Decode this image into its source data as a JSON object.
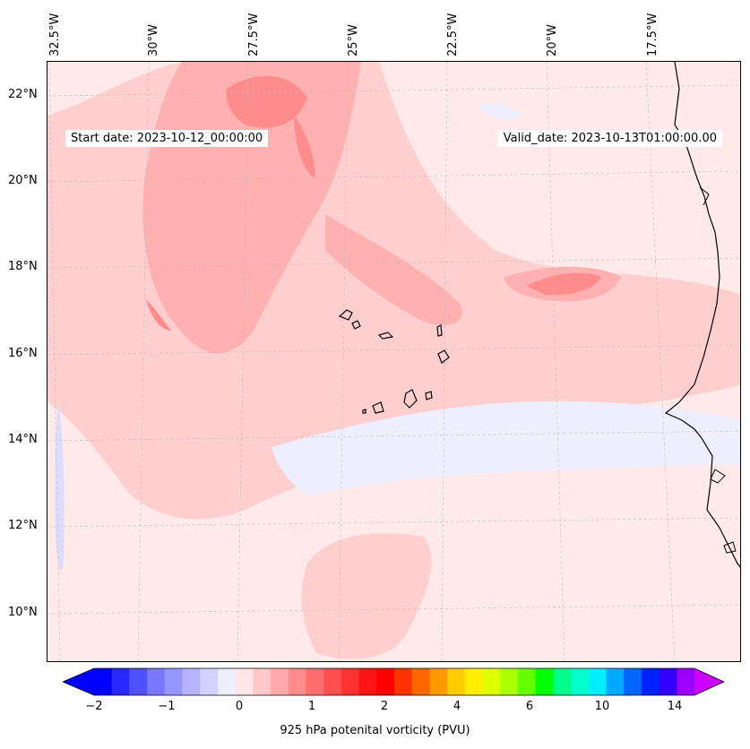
{
  "map": {
    "start_date": "Start date: 2023-10-12_00:00:00",
    "valid_date": "Valid_date: 2023-10-13T01:00:00.00",
    "lon_labels": [
      "32.5°W",
      "30°W",
      "27.5°W",
      "25°W",
      "22.5°W",
      "20°W",
      "17.5°W"
    ],
    "lat_labels": [
      "22°N",
      "20°N",
      "18°N",
      "16°N",
      "14°N",
      "12°N",
      "10°N"
    ],
    "features": [
      "Cape Verde islands",
      "West African coastline"
    ]
  },
  "colorbar": {
    "label": "925 hPa potenital vorticity (PVU)",
    "ticks": [
      "−2",
      "−1",
      "0",
      "1",
      "2",
      "4",
      "6",
      "10",
      "14"
    ],
    "colors": [
      "#0000ff",
      "#2828ff",
      "#5050ff",
      "#7878ff",
      "#9696ff",
      "#b4b4ff",
      "#d2d2ff",
      "#eeeeff",
      "#ffe6e6",
      "#ffc8c8",
      "#ffaaaa",
      "#ff8c8c",
      "#ff6e6e",
      "#ff5050",
      "#ff3232",
      "#ff1414",
      "#ff0000",
      "#ff3300",
      "#ff6600",
      "#ff9900",
      "#ffcc00",
      "#ffee00",
      "#ddff00",
      "#aaff00",
      "#66ff00",
      "#00ff00",
      "#00ff88",
      "#00ffcc",
      "#00eeff",
      "#00aaff",
      "#0066ff",
      "#0022ff",
      "#3300ff",
      "#9900ff"
    ],
    "extend_low_color": "#0000ff",
    "extend_high_color": "#cc00ff"
  }
}
